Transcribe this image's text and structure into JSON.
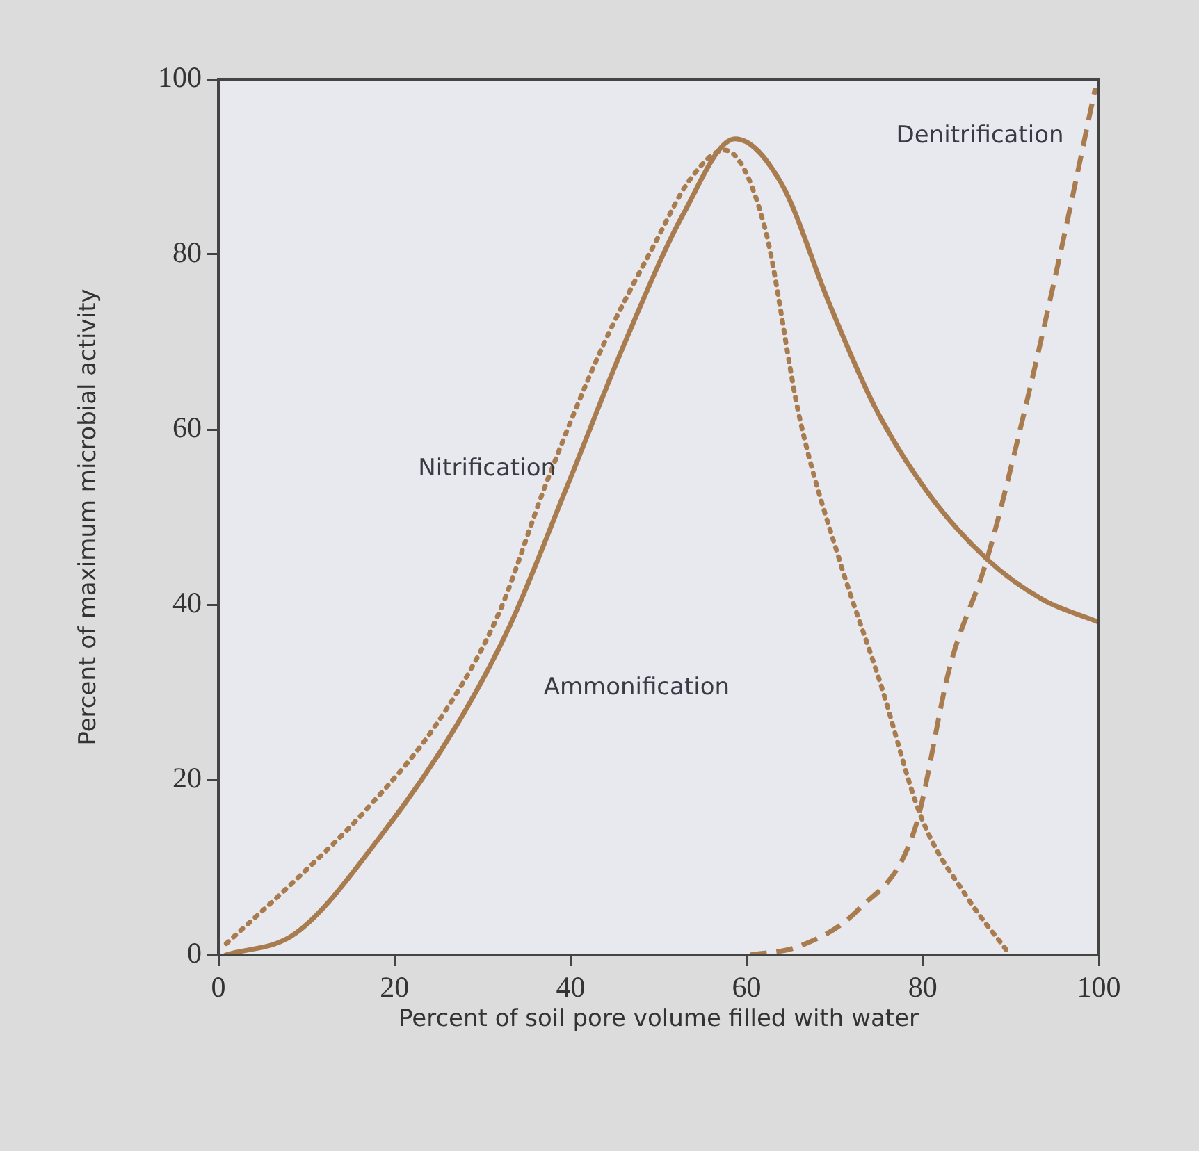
{
  "chart_data": {
    "type": "line",
    "xlabel": "Percent of soil pore volume filled with water",
    "ylabel": "Percent of maximum microbial activity",
    "xlim": [
      0,
      100
    ],
    "xticks": [
      0,
      20,
      40,
      60,
      80,
      100
    ],
    "ylim": [
      0,
      100
    ],
    "yticks": [
      0,
      20,
      40,
      60,
      80,
      100
    ],
    "marker": "none",
    "series": [
      {
        "name": "Ammonification",
        "color": "#a97c50",
        "line_style": "solid",
        "x": [
          0.8,
          8.8,
          18.6,
          27.1,
          33.1,
          39.6,
          46.2,
          52.8,
          58.7,
          64,
          69.3,
          74.5,
          80.5,
          87.3,
          93.6,
          100
        ],
        "values": [
          0,
          2.5,
          13.8,
          26.3,
          37.6,
          53.5,
          70,
          84.6,
          93.2,
          88,
          74.6,
          62.7,
          52.9,
          45.2,
          40.6,
          38
        ]
      },
      {
        "name": "Nitrification",
        "color": "#a97c50",
        "line_style": "dotted",
        "x": [
          0.9,
          8.8,
          16.7,
          25.2,
          31.8,
          37.1,
          43.6,
          49.6,
          53.6,
          57.5,
          62,
          66,
          70.6,
          75.2,
          79.8,
          85.1,
          89.7
        ],
        "values": [
          1.3,
          8.6,
          16.5,
          27,
          38.9,
          53.5,
          69.4,
          81.3,
          88.6,
          91.9,
          83.3,
          61.4,
          44.9,
          31,
          15.8,
          6.5,
          0.3
        ]
      },
      {
        "name": "Denitrification",
        "color": "#a97c50",
        "line_style": "dashed",
        "x": [
          60.4,
          66,
          72.7,
          79.1,
          83.1,
          87.3,
          91.7,
          95.6,
          99.6
        ],
        "values": [
          0,
          1,
          5.2,
          14.4,
          33,
          45.2,
          62.7,
          80,
          99
        ]
      }
    ]
  }
}
